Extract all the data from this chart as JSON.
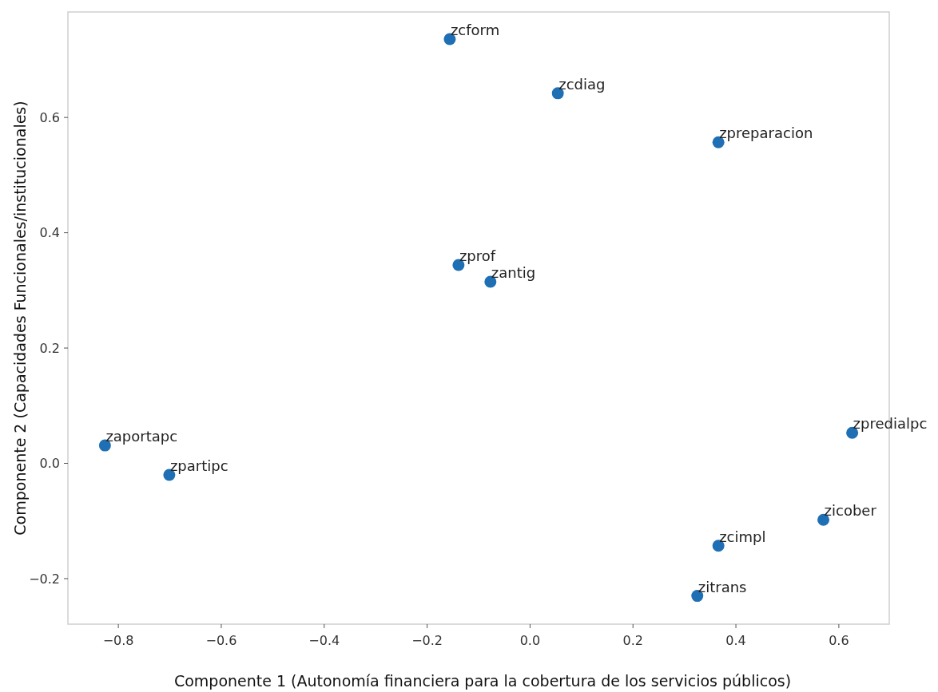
{
  "chart_data": {
    "type": "scatter",
    "xlabel": "Componente 1 (Autonomía financiera para la cobertura de los servicios públicos)",
    "ylabel": "Componente 2 (Capacidades Funcionales/institucionales)",
    "x": [
      -0.156,
      0.054,
      0.366,
      -0.139,
      -0.077,
      -0.826,
      -0.701,
      0.626,
      0.57,
      0.366,
      0.325
    ],
    "values": [
      0.736,
      0.642,
      0.557,
      0.344,
      0.315,
      0.031,
      -0.02,
      0.053,
      -0.098,
      -0.143,
      -0.23
    ],
    "color": "#1f6fb4",
    "marker": "circle",
    "grid": false,
    "xlim": [
      -0.898,
      0.698
    ],
    "ylim": [
      -0.279,
      0.783
    ],
    "xticks": [
      {
        "value": -0.8,
        "label": "−0.8"
      },
      {
        "value": -0.6,
        "label": "−0.6"
      },
      {
        "value": -0.4,
        "label": "−0.4"
      },
      {
        "value": -0.2,
        "label": "−0.2"
      },
      {
        "value": 0,
        "label": "0.0"
      },
      {
        "value": 0.2,
        "label": "0.2"
      },
      {
        "value": 0.4,
        "label": "0.4"
      },
      {
        "value": 0.6,
        "label": "0.6"
      }
    ],
    "yticks": [
      {
        "value": -0.2,
        "label": "−0.2"
      },
      {
        "value": 0,
        "label": "0.0"
      },
      {
        "value": 0.2,
        "label": "0.2"
      },
      {
        "value": 0.4,
        "label": "0.4"
      },
      {
        "value": 0.6,
        "label": "0.6"
      }
    ],
    "annotations": [
      {
        "text": "zcform",
        "x": -0.156,
        "y": 0.736
      },
      {
        "text": "zcdiag",
        "x": 0.054,
        "y": 0.642
      },
      {
        "text": "zpreparacion",
        "x": 0.366,
        "y": 0.557
      },
      {
        "text": "zprof",
        "x": -0.139,
        "y": 0.344
      },
      {
        "text": "zantig",
        "x": -0.077,
        "y": 0.315
      },
      {
        "text": "zaportapc",
        "x": -0.826,
        "y": 0.031
      },
      {
        "text": "zpartipc",
        "x": -0.701,
        "y": -0.02
      },
      {
        "text": "zpredialpc",
        "x": 0.626,
        "y": 0.053
      },
      {
        "text": "zicober",
        "x": 0.57,
        "y": -0.098
      },
      {
        "text": "zcimpl",
        "x": 0.366,
        "y": -0.143
      },
      {
        "text": "zitrans",
        "x": 0.325,
        "y": -0.23
      }
    ]
  }
}
